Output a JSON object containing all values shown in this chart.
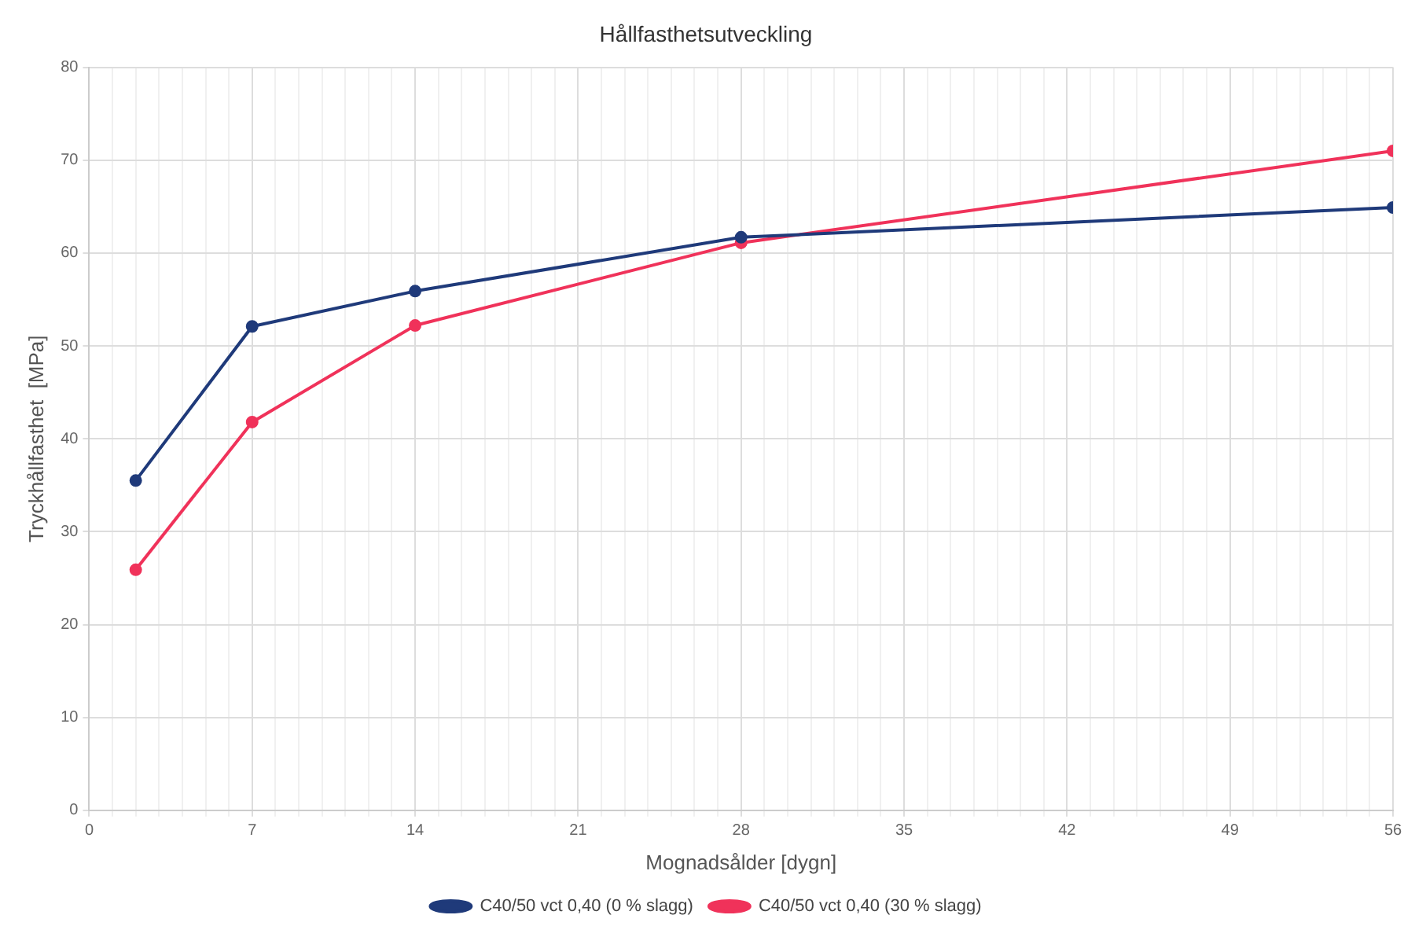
{
  "chart_data": {
    "type": "line",
    "title": "Hållfasthetsutveckling",
    "xlabel": "Mognadsålder [dygn]",
    "ylabel": "Tryckhållfasthet  [MPa]",
    "x": [
      2,
      7,
      14,
      28,
      56
    ],
    "series": [
      {
        "name": "C40/50 vct 0,40 (0 % slagg)",
        "color": "#1f3a7a",
        "values": [
          35.5,
          52.1,
          55.9,
          61.7,
          64.9
        ]
      },
      {
        "name": "C40/50 vct 0,40 (30 % slagg)",
        "color": "#f0325a",
        "values": [
          25.9,
          41.8,
          52.2,
          61.1,
          71.0
        ]
      }
    ],
    "xlim": [
      0,
      56
    ],
    "xticks": [
      0,
      {
        "value": 1,
        "label": null
      },
      {
        "value": 2,
        "label": null
      },
      {
        "value": 3,
        "label": null
      },
      {
        "value": 4,
        "label": null
      },
      {
        "value": 5,
        "label": null
      },
      {
        "value": 6,
        "label": null
      },
      7,
      {
        "value": 8,
        "label": null
      },
      {
        "value": 9,
        "label": null
      },
      {
        "value": 10,
        "label": null
      },
      {
        "value": 11,
        "label": null
      },
      {
        "value": 12,
        "label": null
      },
      {
        "value": 13,
        "label": null
      },
      14,
      {
        "value": 15,
        "label": null
      },
      {
        "value": 16,
        "label": null
      },
      {
        "value": 17,
        "label": null
      },
      {
        "value": 18,
        "label": null
      },
      {
        "value": 19,
        "label": null
      },
      {
        "value": 20,
        "label": null
      },
      21,
      {
        "value": 22,
        "label": null
      },
      {
        "value": 23,
        "label": null
      },
      {
        "value": 24,
        "label": null
      },
      {
        "value": 25,
        "label": null
      },
      {
        "value": 26,
        "label": null
      },
      {
        "value": 27,
        "label": null
      },
      28,
      {
        "value": 29,
        "label": null
      },
      {
        "value": 30,
        "label": null
      },
      {
        "value": 31,
        "label": null
      },
      {
        "value": 32,
        "label": null
      },
      {
        "value": 33,
        "label": null
      },
      {
        "value": 34,
        "label": null
      },
      35,
      {
        "value": 36,
        "label": null
      },
      {
        "value": 37,
        "label": null
      },
      {
        "value": 38,
        "label": null
      },
      {
        "value": 39,
        "label": null
      },
      {
        "value": 40,
        "label": null
      },
      {
        "value": 41,
        "label": null
      },
      42,
      {
        "value": 43,
        "label": null
      },
      {
        "value": 44,
        "label": null
      },
      {
        "value": 45,
        "label": null
      },
      {
        "value": 46,
        "label": null
      },
      {
        "value": 47,
        "label": null
      },
      {
        "value": 48,
        "label": null
      },
      49,
      {
        "value": 50,
        "label": null
      },
      {
        "value": 51,
        "label": null
      },
      {
        "value": 52,
        "label": null
      },
      {
        "value": 53,
        "label": null
      },
      {
        "value": 54,
        "label": null
      },
      {
        "value": 55,
        "label": null
      },
      56
    ],
    "ylim": [
      0,
      80
    ],
    "yticks": [
      0,
      10,
      20,
      30,
      40,
      50,
      60,
      70,
      80
    ],
    "grid": true,
    "legend": "bottom",
    "marker": "circle",
    "line_style": "solid"
  }
}
